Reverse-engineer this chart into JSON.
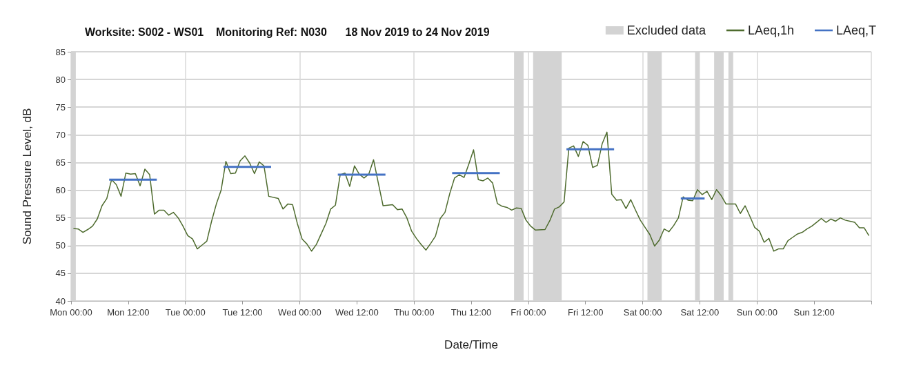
{
  "chart_data": {
    "type": "line",
    "title": "Worksite: S002 - WS01    Monitoring Ref: N030      18 Nov 2019 to 24 Nov 2019",
    "xlabel": "Date/Time",
    "ylabel": "Sound Pressure Level, dB",
    "xlim": [
      "2019-11-18T00:00",
      "2019-11-25T00:00"
    ],
    "xticks": [
      {
        "value": "2019-11-18T00:00",
        "label": "Mon 00:00"
      },
      {
        "value": "2019-11-18T12:00",
        "label": "Mon 12:00"
      },
      {
        "value": "2019-11-19T00:00",
        "label": "Tue 00:00"
      },
      {
        "value": "2019-11-19T12:00",
        "label": "Tue 12:00"
      },
      {
        "value": "2019-11-20T00:00",
        "label": "Wed 00:00"
      },
      {
        "value": "2019-11-20T12:00",
        "label": "Wed 12:00"
      },
      {
        "value": "2019-11-21T00:00",
        "label": "Thu 00:00"
      },
      {
        "value": "2019-11-21T12:00",
        "label": "Thu 12:00"
      },
      {
        "value": "2019-11-22T00:00",
        "label": "Fri 00:00"
      },
      {
        "value": "2019-11-22T12:00",
        "label": "Fri 12:00"
      },
      {
        "value": "2019-11-23T00:00",
        "label": "Sat 00:00"
      },
      {
        "value": "2019-11-23T12:00",
        "label": "Sat 12:00"
      },
      {
        "value": "2019-11-24T00:00",
        "label": "Sun 00:00"
      },
      {
        "value": "2019-11-24T12:00",
        "label": "Sun 12:00"
      },
      {
        "value": "2019-11-25T00:00",
        "label": null
      }
    ],
    "ylim": [
      40,
      85
    ],
    "yticks": [
      40,
      45,
      50,
      55,
      60,
      65,
      70,
      75,
      80,
      85
    ],
    "grid": true,
    "legend": "top right",
    "marker": "none",
    "bands": [
      {
        "axis": "x",
        "from": "2019-11-18T00:00",
        "to": "2019-11-18T01:00",
        "label": "Excluded data",
        "color": "#d3d3d3"
      },
      {
        "axis": "x",
        "from": "2019-11-21T21:00",
        "to": "2019-11-21T23:00",
        "color": "#d3d3d3"
      },
      {
        "axis": "x",
        "from": "2019-11-22T01:00",
        "to": "2019-11-22T07:00",
        "color": "#d3d3d3"
      },
      {
        "axis": "x",
        "from": "2019-11-23T01:00",
        "to": "2019-11-23T04:00",
        "color": "#d3d3d3"
      },
      {
        "axis": "x",
        "from": "2019-11-23T11:00",
        "to": "2019-11-23T12:00",
        "color": "#d3d3d3"
      },
      {
        "axis": "x",
        "from": "2019-11-23T15:00",
        "to": "2019-11-23T17:00",
        "color": "#d3d3d3"
      },
      {
        "axis": "x",
        "from": "2019-11-23T18:00",
        "to": "2019-11-23T19:00",
        "color": "#d3d3d3"
      }
    ],
    "series": [
      {
        "name": "LAeq,1h",
        "color": "#4e6b2e",
        "x": [
          "2019-11-18T00:30",
          "2019-11-18T01:30",
          "2019-11-18T02:30",
          "2019-11-18T03:30",
          "2019-11-18T04:30",
          "2019-11-18T05:30",
          "2019-11-18T06:30",
          "2019-11-18T07:30",
          "2019-11-18T08:30",
          "2019-11-18T09:30",
          "2019-11-18T10:30",
          "2019-11-18T11:30",
          "2019-11-18T12:30",
          "2019-11-18T13:30",
          "2019-11-18T14:30",
          "2019-11-18T15:30",
          "2019-11-18T16:30",
          "2019-11-18T17:30",
          "2019-11-18T18:30",
          "2019-11-18T19:30",
          "2019-11-18T20:30",
          "2019-11-18T21:30",
          "2019-11-18T22:30",
          "2019-11-18T23:30",
          "2019-11-19T00:30",
          "2019-11-19T01:30",
          "2019-11-19T02:30",
          "2019-11-19T03:30",
          "2019-11-19T04:30",
          "2019-11-19T05:30",
          "2019-11-19T06:30",
          "2019-11-19T07:30",
          "2019-11-19T08:30",
          "2019-11-19T09:30",
          "2019-11-19T10:30",
          "2019-11-19T11:30",
          "2019-11-19T12:30",
          "2019-11-19T13:30",
          "2019-11-19T14:30",
          "2019-11-19T15:30",
          "2019-11-19T16:30",
          "2019-11-19T17:30",
          "2019-11-19T19:30",
          "2019-11-19T20:30",
          "2019-11-19T21:30",
          "2019-11-19T22:30",
          "2019-11-19T23:30",
          "2019-11-20T00:30",
          "2019-11-20T01:30",
          "2019-11-20T02:30",
          "2019-11-20T03:30",
          "2019-11-20T04:30",
          "2019-11-20T05:30",
          "2019-11-20T06:30",
          "2019-11-20T07:30",
          "2019-11-20T08:30",
          "2019-11-20T09:30",
          "2019-11-20T10:30",
          "2019-11-20T11:30",
          "2019-11-20T12:30",
          "2019-11-20T13:30",
          "2019-11-20T14:30",
          "2019-11-20T15:30",
          "2019-11-20T16:30",
          "2019-11-20T17:30",
          "2019-11-20T19:30",
          "2019-11-20T20:30",
          "2019-11-20T21:30",
          "2019-11-20T22:30",
          "2019-11-20T23:30",
          "2019-11-21T00:30",
          "2019-11-21T01:30",
          "2019-11-21T02:30",
          "2019-11-21T03:30",
          "2019-11-21T04:30",
          "2019-11-21T05:30",
          "2019-11-21T06:30",
          "2019-11-21T07:30",
          "2019-11-21T08:30",
          "2019-11-21T09:30",
          "2019-11-21T10:30",
          "2019-11-21T11:30",
          "2019-11-21T12:30",
          "2019-11-21T13:30",
          "2019-11-21T14:30",
          "2019-11-21T15:30",
          "2019-11-21T16:30",
          "2019-11-21T17:30",
          "2019-11-21T18:30",
          "2019-11-21T19:30",
          "2019-11-21T20:30",
          "2019-11-21T21:30",
          "2019-11-21T22:30",
          "2019-11-21T23:30",
          "2019-11-22T00:30",
          "2019-11-22T01:30",
          "2019-11-22T03:30",
          "2019-11-22T04:30",
          "2019-11-22T05:30",
          "2019-11-22T06:30",
          "2019-11-22T07:30",
          "2019-11-22T08:30",
          "2019-11-22T09:30",
          "2019-11-22T10:30",
          "2019-11-22T11:30",
          "2019-11-22T12:30",
          "2019-11-22T13:30",
          "2019-11-22T14:30",
          "2019-11-22T15:30",
          "2019-11-22T16:30",
          "2019-11-22T17:30",
          "2019-11-22T18:30",
          "2019-11-22T19:30",
          "2019-11-22T20:30",
          "2019-11-22T21:30",
          "2019-11-22T22:30",
          "2019-11-22T23:30",
          "2019-11-23T00:30",
          "2019-11-23T01:30",
          "2019-11-23T02:30",
          "2019-11-23T03:30",
          "2019-11-23T04:30",
          "2019-11-23T05:30",
          "2019-11-23T06:30",
          "2019-11-23T07:30",
          "2019-11-23T08:30",
          "2019-11-23T09:30",
          "2019-11-23T10:30",
          "2019-11-23T11:30",
          "2019-11-23T12:30",
          "2019-11-23T13:30",
          "2019-11-23T14:30",
          "2019-11-23T15:30",
          "2019-11-23T16:30",
          "2019-11-23T17:30",
          "2019-11-23T19:30",
          "2019-11-23T20:30",
          "2019-11-23T21:30",
          "2019-11-23T22:30",
          "2019-11-23T23:30",
          "2019-11-24T00:30",
          "2019-11-24T01:30",
          "2019-11-24T02:30",
          "2019-11-24T03:30",
          "2019-11-24T04:30",
          "2019-11-24T05:30",
          "2019-11-24T06:30",
          "2019-11-24T07:30",
          "2019-11-24T08:30",
          "2019-11-24T09:30",
          "2019-11-24T10:30",
          "2019-11-24T11:30",
          "2019-11-24T12:30",
          "2019-11-24T13:30",
          "2019-11-24T14:30",
          "2019-11-24T15:30",
          "2019-11-24T16:30",
          "2019-11-24T17:30",
          "2019-11-24T18:30",
          "2019-11-24T19:30",
          "2019-11-24T20:30",
          "2019-11-24T21:30",
          "2019-11-24T22:30",
          "2019-11-24T23:30"
        ],
        "values": [
          53.1,
          53.0,
          52.4,
          52.9,
          53.5,
          54.8,
          57.2,
          58.5,
          61.9,
          61.0,
          58.9,
          63.1,
          62.9,
          63.0,
          60.8,
          63.8,
          62.8,
          55.7,
          56.4,
          56.4,
          55.5,
          56.0,
          55.0,
          53.5,
          51.8,
          51.2,
          49.4,
          50.1,
          50.8,
          54.4,
          57.5,
          60.0,
          65.2,
          63.0,
          63.1,
          65.3,
          66.2,
          64.9,
          63.0,
          65.1,
          64.4,
          58.9,
          58.5,
          56.6,
          57.5,
          57.4,
          54.0,
          51.2,
          50.3,
          49.0,
          50.2,
          52.1,
          54.0,
          56.6,
          57.3,
          62.8,
          63.1,
          60.7,
          64.4,
          62.9,
          62.2,
          62.9,
          65.5,
          61.3,
          57.2,
          57.4,
          56.5,
          56.6,
          55.0,
          52.6,
          51.3,
          50.2,
          49.2,
          50.4,
          51.7,
          54.9,
          56.0,
          59.4,
          62.2,
          62.8,
          62.3,
          64.7,
          67.3,
          61.9,
          61.7,
          62.2,
          61.3,
          57.6,
          57.1,
          56.9,
          56.4,
          56.8,
          56.7,
          54.6,
          53.5,
          52.8,
          52.9,
          54.5,
          56.6,
          57.0,
          57.9,
          67.6,
          68.0,
          66.1,
          68.8,
          68.1,
          64.1,
          64.5,
          68.4,
          70.5,
          59.3,
          58.2,
          58.3,
          56.7,
          58.3,
          56.4,
          54.6,
          53.3,
          52.0,
          49.9,
          51.0,
          53.0,
          52.5,
          53.6,
          55.0,
          58.8,
          58.2,
          58.1,
          60.1,
          59.2,
          59.8,
          58.3,
          60.1,
          59.0,
          57.5,
          57.5,
          55.8,
          57.2,
          55.3,
          53.3,
          52.6,
          50.6,
          51.3,
          49.0,
          49.4,
          49.4,
          50.9,
          51.5,
          52.1,
          52.4,
          53.0,
          53.5,
          54.2,
          54.9,
          54.2,
          54.8,
          54.4,
          55.0,
          54.6,
          54.4,
          54.2,
          53.2,
          53.2,
          51.8
        ]
      },
      {
        "name": "LAeq,T",
        "color": "#4472c4",
        "x": [
          "2019-11-18T08:00",
          "2019-11-18T18:00",
          "2019-11-18T19:00",
          "2019-11-19T08:00",
          "2019-11-19T18:00",
          "2019-11-19T19:00",
          "2019-11-20T08:00",
          "2019-11-20T18:00",
          "2019-11-20T19:00",
          "2019-11-21T08:00",
          "2019-11-21T18:00",
          "2019-11-21T19:00",
          "2019-11-22T08:00",
          "2019-11-22T18:00",
          "2019-11-22T19:00",
          "2019-11-23T08:00",
          "2019-11-23T13:00"
        ],
        "values": [
          61.9,
          61.9,
          null,
          64.2,
          64.2,
          null,
          62.8,
          62.8,
          null,
          63.1,
          63.1,
          null,
          67.4,
          67.4,
          null,
          58.5,
          58.5
        ]
      }
    ]
  }
}
